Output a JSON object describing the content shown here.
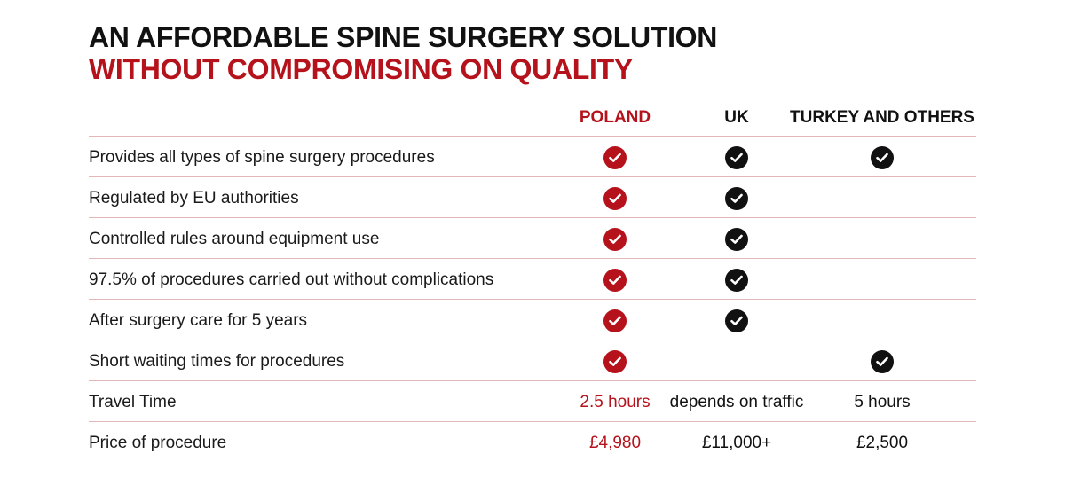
{
  "title": {
    "line1": "AN AFFORDABLE SPINE SURGERY SOLUTION",
    "line2": "WITHOUT COMPROMISING ON QUALITY"
  },
  "colors": {
    "accent": "#b5121b",
    "dark": "#111111",
    "divider": "#e3b7b7"
  },
  "columns": {
    "poland": "POLAND",
    "uk": "UK",
    "turkey": "TURKEY AND OTHERS"
  },
  "rows": [
    {
      "label": "Provides all types of spine surgery procedures",
      "poland": true,
      "uk": true,
      "turkey": true
    },
    {
      "label": "Regulated by EU authorities",
      "poland": true,
      "uk": true,
      "turkey": false
    },
    {
      "label": "Controlled rules around equipment use",
      "poland": true,
      "uk": true,
      "turkey": false
    },
    {
      "label": "97.5% of procedures carried out without complications",
      "poland": true,
      "uk": true,
      "turkey": false
    },
    {
      "label": "After surgery care for 5 years",
      "poland": true,
      "uk": true,
      "turkey": false
    },
    {
      "label": "Short waiting times for procedures",
      "poland": true,
      "uk": false,
      "turkey": true
    }
  ],
  "travel": {
    "label": "Travel Time",
    "poland": "2.5 hours",
    "uk": "depends on traffic",
    "turkey": "5 hours"
  },
  "price": {
    "label": "Price of procedure",
    "poland": "£4,980",
    "uk": "£11,000+",
    "turkey": "£2,500"
  },
  "icons": {
    "check": "check-circle-icon"
  }
}
